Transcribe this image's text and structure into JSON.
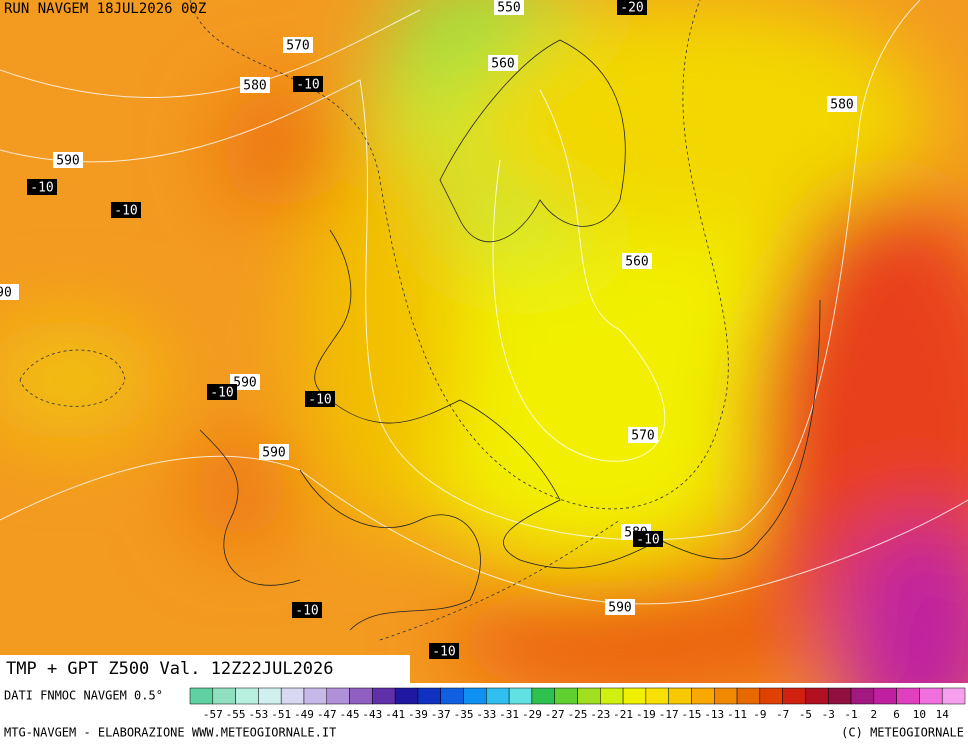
{
  "header": {
    "run": "RUN NAVGEM 18JUL2026 00Z"
  },
  "map": {
    "labels": [
      "550",
      "-20",
      "570",
      "580",
      "-10",
      "560",
      "580",
      "590",
      "-10",
      "-10",
      "90",
      "560",
      "590",
      "-10",
      "-10",
      "570",
      "590",
      "580",
      "-10",
      "590",
      "-10",
      "-10"
    ]
  },
  "footer": {
    "title": "TMP + GPT Z500 Val. 12Z22JUL2026",
    "source": "DATI FNMOC NAVGEM 0.5°",
    "credit": "MTG-NAVGEM - ELABORAZIONE WWW.METEOGIORNALE.IT",
    "copyright": "(C) METEOGIORNALE"
  },
  "colorbar": {
    "labels": [
      "-57",
      "-55",
      "-53",
      "-51",
      "-49",
      "-47",
      "-45",
      "-43",
      "-41",
      "-39",
      "-37",
      "-35",
      "-33",
      "-31",
      "-29",
      "-27",
      "-25",
      "-23",
      "-21",
      "-19",
      "-17",
      "-15",
      "-13",
      "-11",
      "-9",
      "-7",
      "-5",
      "-3",
      "-1",
      "2",
      "6",
      "10",
      "14"
    ],
    "colors": [
      "#5fd0a0",
      "#8fe0c0",
      "#b8f0e0",
      "#d0f0f0",
      "#d8d8f0",
      "#c8b8e8",
      "#b090d8",
      "#9060c0",
      "#6030a8",
      "#2018a0",
      "#1030c0",
      "#1060e0",
      "#1090f0",
      "#30c0f0",
      "#60e0e0",
      "#30c050",
      "#60d030",
      "#a0e020",
      "#d0f010",
      "#f0f000",
      "#f8e000",
      "#f8c800",
      "#f8a800",
      "#f08800",
      "#e86800",
      "#e04000",
      "#d02010",
      "#b01020",
      "#901040",
      "#a01880",
      "#c020a0",
      "#e040c0",
      "#f070e0",
      "#f8a0f0"
    ]
  }
}
